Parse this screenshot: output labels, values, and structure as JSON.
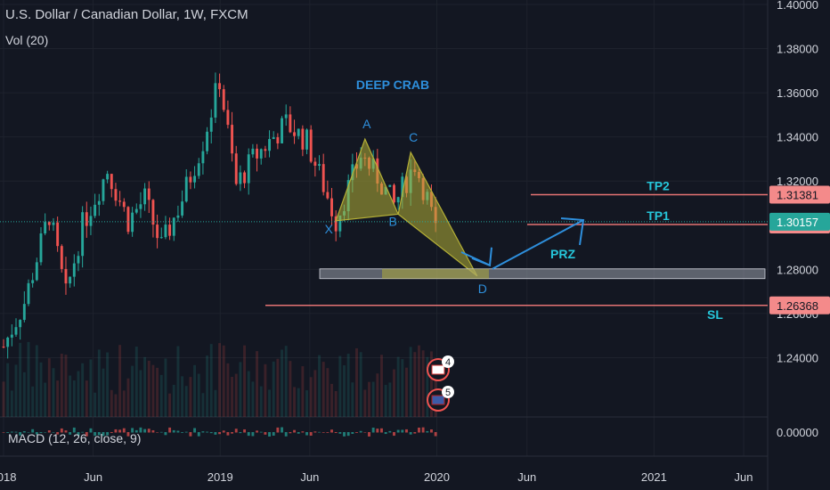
{
  "header": {
    "title": "U.S. Dollar / Canadian Dollar, 1W, FXCM",
    "volume_label": "Vol (20)",
    "macd_label": "MACD (12, 26, close, 9)"
  },
  "chart_data": {
    "type": "candlestick",
    "symbol": "USDCAD",
    "interval": "1W",
    "ylim": [
      1.22,
      1.4
    ],
    "price_ticks": [
      "1.40000",
      "1.38000",
      "1.36000",
      "1.34000",
      "1.32000",
      "1.28000",
      "1.26000",
      "1.24000"
    ],
    "macd_tick": "0.00000",
    "time_ticks": [
      {
        "label": "2018",
        "date": "2018-01-01"
      },
      {
        "label": "Jun",
        "date": "2018-06-01"
      },
      {
        "label": "2019",
        "date": "2019-01-01"
      },
      {
        "label": "Jun",
        "date": "2019-06-01"
      },
      {
        "label": "2020",
        "date": "2020-01-01"
      },
      {
        "label": "Jun",
        "date": "2020-06-01"
      },
      {
        "label": "2021",
        "date": "2021-01-01"
      },
      {
        "label": "Jun",
        "date": "2021-06-01"
      }
    ],
    "price_path": [
      [
        "2018-01-01",
        1.245
      ],
      [
        "2018-02-05",
        1.265
      ],
      [
        "2018-03-19",
        1.305
      ],
      [
        "2018-04-16",
        1.268
      ],
      [
        "2018-05-14",
        1.3
      ],
      [
        "2018-06-25",
        1.325
      ],
      [
        "2018-07-30",
        1.302
      ],
      [
        "2018-08-27",
        1.312
      ],
      [
        "2018-09-24",
        1.29
      ],
      [
        "2018-10-29",
        1.312
      ],
      [
        "2018-12-03",
        1.338
      ],
      [
        "2018-12-31",
        1.366
      ],
      [
        "2019-01-28",
        1.318
      ],
      [
        "2019-02-25",
        1.33
      ],
      [
        "2019-03-25",
        1.338
      ],
      [
        "2019-04-22",
        1.346
      ],
      [
        "2019-05-27",
        1.338
      ],
      [
        "2019-06-24",
        1.318
      ],
      [
        "2019-07-15",
        1.302
      ],
      [
        "2019-08-26",
        1.332
      ],
      [
        "2019-09-23",
        1.322
      ],
      [
        "2019-10-21",
        1.309
      ],
      [
        "2019-11-25",
        1.328
      ],
      [
        "2019-12-16",
        1.312
      ],
      [
        "2019-12-30",
        1.297
      ]
    ],
    "harmonic_pattern": {
      "name": "DEEP CRAB",
      "points": [
        {
          "label": "X",
          "date": "2019-07-15",
          "price": 1.302
        },
        {
          "label": "A",
          "date": "2019-09-02",
          "price": 1.339
        },
        {
          "label": "B",
          "date": "2019-10-28",
          "price": 1.305
        },
        {
          "label": "C",
          "date": "2019-11-18",
          "price": 1.333
        },
        {
          "label": "D",
          "date": "2020-03-09",
          "price": 1.277
        }
      ]
    },
    "levels": [
      {
        "name": "TP2",
        "value": 1.31381,
        "price_label": "1.31381"
      },
      {
        "name": "TP1",
        "value": 1.30033,
        "price_label": "1.30033"
      },
      {
        "name": "SL",
        "value": 1.26368,
        "price_label": "1.26368"
      }
    ],
    "current_price": {
      "value": 1.30157,
      "price_label": "1.30157"
    },
    "prz_label": "PRZ",
    "event_badges": [
      {
        "count": "4",
        "country": "Canada"
      },
      {
        "count": "5",
        "country": "United States"
      }
    ],
    "colors": {
      "background": "#131722",
      "up": "#26a69a",
      "down": "#ef5350",
      "pattern_fill": "#b5b036",
      "annotation": "#2e8fdc",
      "level_line": "#e57373",
      "current_price": "#26a69a",
      "grid": "#1e222d",
      "axis_text": "#d1d4dc"
    }
  }
}
